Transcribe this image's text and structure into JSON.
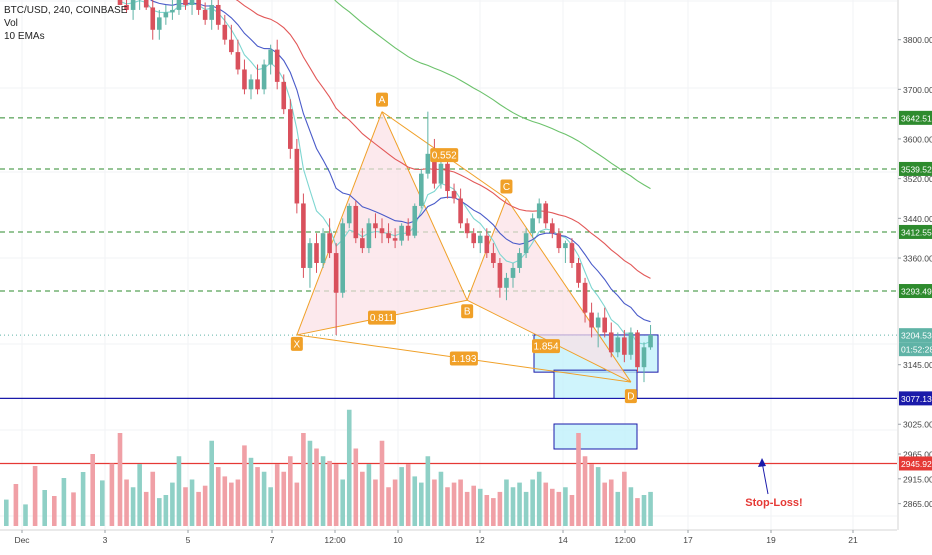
{
  "legend": {
    "symbol": "BTC/USD, 240, COINBASE",
    "volume": "Vol",
    "emas": "10 EMAs"
  },
  "colors": {
    "up": "#5fb3a6",
    "down": "#d9505c",
    "vol_up": "#8fd0c6",
    "vol_down": "#f0a0a6",
    "pattern": "#f0a028",
    "level": "#2e8b2e",
    "entry": "#1a1aaa",
    "stop": "#e53935",
    "box_fill": "#bff0fb",
    "price_tag": "#2e8b2e"
  },
  "chart_data": {
    "type": "candlestick",
    "title": "BTC/USD, 240, COINBASE",
    "ylim": [
      2830,
      3880
    ],
    "x_ticks": [
      "Dec",
      "3",
      "5",
      "7",
      "12:00",
      "10",
      "12",
      "14",
      "12:00",
      "17",
      "19",
      "21"
    ],
    "y_ticks": [
      "3800.00",
      "3700.00",
      "3600.00",
      "3520.00",
      "3440.00",
      "3360.00",
      "3145.00",
      "3025.00",
      "2965.00",
      "2915.00",
      "2865.00"
    ],
    "levels": [
      {
        "label": "3642.51",
        "value": 3642.51,
        "style": "dashed",
        "color": "#2e8b2e"
      },
      {
        "label": "3539.52",
        "value": 3539.52,
        "style": "dashed",
        "color": "#2e8b2e"
      },
      {
        "label": "3412.55",
        "value": 3412.55,
        "style": "dashed",
        "color": "#2e8b2e"
      },
      {
        "label": "3293.49",
        "value": 3293.49,
        "style": "dashed",
        "color": "#2e8b2e"
      },
      {
        "label": "3204.53",
        "value": 3204.53,
        "style": "dotted",
        "color": "#5fb3a6"
      },
      {
        "label": "3077.13",
        "value": 3077.13,
        "style": "solid",
        "color": "#1a1aaa"
      },
      {
        "label": "2945.92",
        "value": 2945.92,
        "style": "solid",
        "color": "#e53935"
      }
    ],
    "countdown": "01:52:28",
    "pattern": {
      "points": [
        {
          "label": "X",
          "value": 3205
        },
        {
          "label": "A",
          "value": 3655
        },
        {
          "label": "B",
          "value": 3275
        },
        {
          "label": "C",
          "value": 3480
        },
        {
          "label": "D",
          "value": 3110
        }
      ],
      "ratios": [
        "0.552",
        "0.811",
        "1.193",
        "1.854"
      ]
    },
    "annotations": [
      "Stop-Loss!"
    ],
    "candles": [
      [
        3905,
        3920,
        3880,
        3870
      ],
      [
        3870,
        3895,
        3855,
        3860
      ],
      [
        3860,
        3890,
        3840,
        3880
      ],
      [
        3880,
        3900,
        3860,
        3890
      ],
      [
        3890,
        3910,
        3860,
        3865
      ],
      [
        3865,
        3880,
        3800,
        3820
      ],
      [
        3820,
        3860,
        3800,
        3845
      ],
      [
        3845,
        3870,
        3830,
        3855
      ],
      [
        3855,
        3880,
        3840,
        3860
      ],
      [
        3860,
        3900,
        3850,
        3895
      ],
      [
        3895,
        3905,
        3860,
        3870
      ],
      [
        3870,
        3890,
        3850,
        3885
      ],
      [
        3885,
        3895,
        3850,
        3860
      ],
      [
        3860,
        3875,
        3830,
        3840
      ],
      [
        3840,
        3880,
        3820,
        3870
      ],
      [
        3870,
        3880,
        3820,
        3830
      ],
      [
        3830,
        3850,
        3790,
        3800
      ],
      [
        3800,
        3830,
        3770,
        3775
      ],
      [
        3775,
        3800,
        3730,
        3740
      ],
      [
        3740,
        3760,
        3690,
        3700
      ],
      [
        3700,
        3730,
        3680,
        3720
      ],
      [
        3720,
        3750,
        3690,
        3700
      ],
      [
        3700,
        3760,
        3690,
        3750
      ],
      [
        3750,
        3790,
        3730,
        3780
      ],
      [
        3780,
        3800,
        3700,
        3715
      ],
      [
        3715,
        3730,
        3650,
        3660
      ],
      [
        3660,
        3680,
        3560,
        3580
      ],
      [
        3580,
        3600,
        3450,
        3470
      ],
      [
        3470,
        3490,
        3320,
        3340
      ],
      [
        3340,
        3400,
        3300,
        3390
      ],
      [
        3390,
        3410,
        3330,
        3350
      ],
      [
        3350,
        3420,
        3340,
        3410
      ],
      [
        3410,
        3440,
        3360,
        3370
      ],
      [
        3370,
        3390,
        3205,
        3290
      ],
      [
        3290,
        3440,
        3280,
        3430
      ],
      [
        3430,
        3470,
        3420,
        3465
      ],
      [
        3465,
        3475,
        3390,
        3400
      ],
      [
        3400,
        3420,
        3370,
        3380
      ],
      [
        3380,
        3440,
        3370,
        3430
      ],
      [
        3430,
        3450,
        3400,
        3420
      ],
      [
        3420,
        3440,
        3390,
        3410
      ],
      [
        3410,
        3430,
        3390,
        3400
      ],
      [
        3400,
        3420,
        3380,
        3395
      ],
      [
        3395,
        3430,
        3385,
        3425
      ],
      [
        3425,
        3440,
        3395,
        3405
      ],
      [
        3405,
        3470,
        3400,
        3465
      ],
      [
        3465,
        3540,
        3460,
        3530
      ],
      [
        3530,
        3655,
        3520,
        3570
      ],
      [
        3570,
        3600,
        3500,
        3510
      ],
      [
        3510,
        3560,
        3500,
        3550
      ],
      [
        3550,
        3570,
        3480,
        3495
      ],
      [
        3495,
        3510,
        3470,
        3480
      ],
      [
        3480,
        3500,
        3420,
        3430
      ],
      [
        3430,
        3440,
        3400,
        3410
      ],
      [
        3410,
        3420,
        3380,
        3390
      ],
      [
        3390,
        3410,
        3370,
        3405
      ],
      [
        3405,
        3420,
        3360,
        3370
      ],
      [
        3370,
        3390,
        3340,
        3350
      ],
      [
        3350,
        3360,
        3280,
        3300
      ],
      [
        3300,
        3330,
        3275,
        3320
      ],
      [
        3320,
        3350,
        3300,
        3340
      ],
      [
        3340,
        3380,
        3330,
        3370
      ],
      [
        3370,
        3420,
        3360,
        3410
      ],
      [
        3410,
        3450,
        3400,
        3440
      ],
      [
        3440,
        3480,
        3430,
        3470
      ],
      [
        3470,
        3475,
        3420,
        3430
      ],
      [
        3430,
        3440,
        3400,
        3410
      ],
      [
        3410,
        3420,
        3370,
        3380
      ],
      [
        3380,
        3395,
        3350,
        3390
      ],
      [
        3390,
        3400,
        3340,
        3350
      ],
      [
        3350,
        3360,
        3300,
        3310
      ],
      [
        3310,
        3320,
        3230,
        3250
      ],
      [
        3250,
        3270,
        3200,
        3220
      ],
      [
        3220,
        3250,
        3180,
        3240
      ],
      [
        3240,
        3260,
        3200,
        3210
      ],
      [
        3210,
        3230,
        3160,
        3170
      ],
      [
        3170,
        3210,
        3160,
        3200
      ],
      [
        3200,
        3215,
        3150,
        3165
      ],
      [
        3165,
        3220,
        3155,
        3210
      ],
      [
        3210,
        3215,
        3130,
        3140
      ],
      [
        3140,
        3190,
        3110,
        3180
      ],
      [
        3180,
        3225,
        3175,
        3205
      ]
    ],
    "volumes": [
      60,
      30,
      25,
      40,
      22,
      35,
      18,
      20,
      28,
      45,
      25,
      30,
      22,
      26,
      55,
      38,
      32,
      28,
      30,
      52,
      44,
      38,
      35,
      25,
      40,
      35,
      45,
      28,
      60,
      55,
      50,
      45,
      42,
      40,
      30,
      75,
      50,
      35,
      40,
      30,
      55,
      25,
      30,
      38,
      40,
      32,
      28,
      45,
      30,
      35,
      25,
      28,
      30,
      22,
      26,
      24,
      20,
      18,
      22,
      30,
      25,
      28,
      22,
      30,
      35,
      28,
      24,
      22,
      25,
      20,
      60,
      45,
      40,
      38,
      28,
      30,
      22,
      35,
      25,
      18,
      20,
      22
    ]
  },
  "stop_label": "Stop-Loss!"
}
